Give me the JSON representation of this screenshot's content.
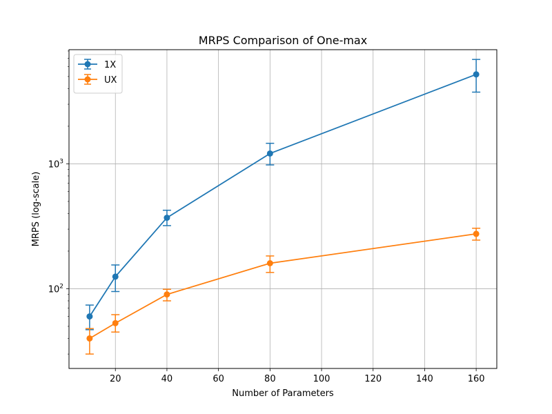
{
  "chart_data": {
    "type": "line",
    "title": "MRPS Comparison of One-max",
    "xlabel": "Number of Parameters",
    "ylabel": "MRPS (log-scale)",
    "x": [
      10,
      20,
      40,
      80,
      160
    ],
    "xlim": [
      2,
      168
    ],
    "xticks": [
      20,
      40,
      60,
      80,
      100,
      120,
      140,
      160
    ],
    "ylim": [
      23,
      8200
    ],
    "yscale": "log",
    "yticks": [
      {
        "value": 100,
        "base": "10",
        "exp": "2"
      },
      {
        "value": 1000,
        "base": "10",
        "exp": "3"
      }
    ],
    "grid": true,
    "legend_position": "top-left",
    "series": [
      {
        "name": "1X",
        "color": "#1f77b4",
        "values": [
          60,
          125,
          370,
          1210,
          5200
        ],
        "err_low": [
          47,
          95,
          320,
          980,
          3750
        ],
        "err_high": [
          74,
          155,
          425,
          1460,
          6850
        ]
      },
      {
        "name": "UX",
        "color": "#ff7f0e",
        "values": [
          40,
          53,
          90,
          160,
          275
        ],
        "err_low": [
          30,
          45,
          80,
          135,
          245
        ],
        "err_high": [
          48,
          62,
          99,
          183,
          305
        ]
      }
    ]
  }
}
